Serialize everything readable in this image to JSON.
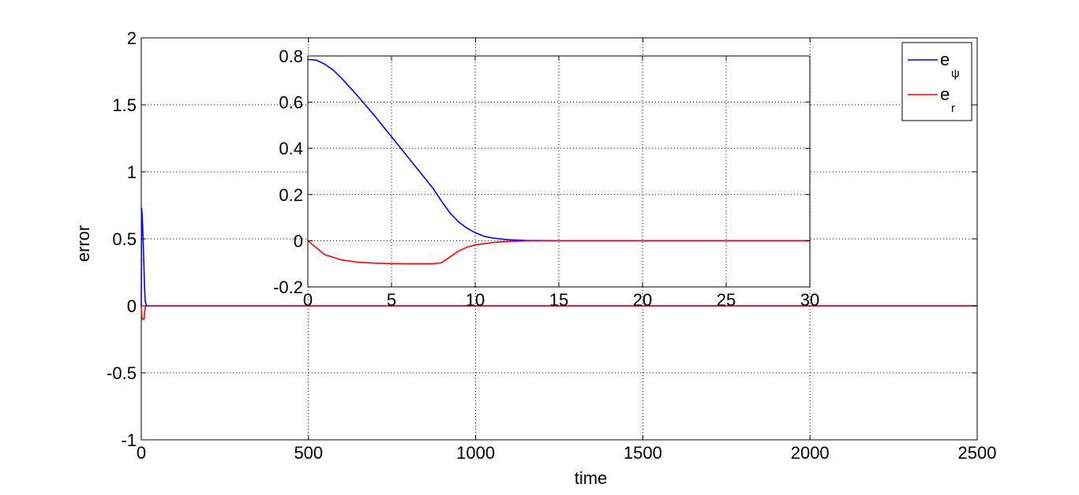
{
  "chart_data": [
    {
      "type": "line",
      "title": "",
      "xlabel": "time",
      "ylabel": "error",
      "xlim": [
        0,
        2500
      ],
      "ylim": [
        -1,
        2
      ],
      "xticks": [
        "0",
        "500",
        "1000",
        "1500",
        "2000",
        "2500"
      ],
      "yticks": [
        "-1",
        "-0.5",
        "0",
        "0.5",
        "1",
        "1.5",
        "2"
      ],
      "grid": true,
      "legend": {
        "position": "top-right",
        "entries": [
          {
            "base": "e",
            "sub": "ψ",
            "color": "#0000ff"
          },
          {
            "base": "e",
            "sub": "r",
            "color": "#ff0000"
          }
        ]
      },
      "series": [
        {
          "color": "#0000ff",
          "x": [
            0,
            1,
            2,
            4,
            6,
            8,
            10,
            12,
            15,
            20,
            30,
            2500
          ],
          "y": [
            0,
            0.73,
            0.7,
            0.6,
            0.45,
            0.28,
            0.12,
            0.03,
            0.005,
            0,
            0,
            0
          ]
        },
        {
          "color": "#ff0000",
          "x": [
            0,
            2,
            4,
            6,
            8,
            9,
            10,
            12,
            15,
            20,
            30,
            2500
          ],
          "y": [
            0,
            -0.09,
            -0.1,
            -0.1,
            -0.1,
            -0.09,
            -0.05,
            -0.01,
            0,
            0,
            0,
            0
          ]
        }
      ]
    },
    {
      "type": "line",
      "title": "",
      "xlabel": "",
      "ylabel": "",
      "xlim": [
        0,
        30
      ],
      "ylim": [
        -0.2,
        0.8
      ],
      "xticks": [
        "0",
        "5",
        "10",
        "15",
        "20",
        "25",
        "30"
      ],
      "yticks": [
        "-0.2",
        "0",
        "0.2",
        "0.4",
        "0.6",
        "0.8"
      ],
      "grid": true,
      "series": [
        {
          "color": "#0000ff",
          "x": [
            0,
            0.5,
            1,
            1.5,
            2,
            3,
            4,
            5,
            6,
            7,
            7.5,
            8,
            8.5,
            9,
            9.5,
            10,
            10.5,
            11,
            12,
            13,
            15,
            30
          ],
          "y": [
            0.785,
            0.782,
            0.765,
            0.74,
            0.705,
            0.625,
            0.54,
            0.45,
            0.36,
            0.27,
            0.225,
            0.17,
            0.12,
            0.082,
            0.055,
            0.035,
            0.02,
            0.012,
            0.004,
            0.001,
            0,
            0
          ]
        },
        {
          "color": "#ff0000",
          "x": [
            0,
            0.5,
            1,
            2,
            3,
            4,
            5,
            6,
            7,
            7.5,
            8,
            8.5,
            9,
            9.5,
            10,
            11,
            12,
            13,
            15,
            30
          ],
          "y": [
            0,
            -0.03,
            -0.06,
            -0.083,
            -0.093,
            -0.097,
            -0.099,
            -0.1,
            -0.1,
            -0.1,
            -0.095,
            -0.07,
            -0.045,
            -0.028,
            -0.018,
            -0.008,
            -0.003,
            -0.001,
            0,
            0
          ]
        }
      ]
    }
  ]
}
